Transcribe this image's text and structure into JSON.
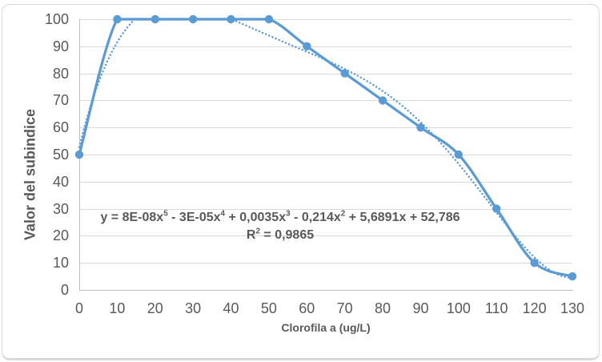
{
  "chart_data": {
    "type": "line",
    "title": "",
    "xlabel": "Clorofila a (ug/L)",
    "ylabel": "Valor del subindice",
    "x": [
      0,
      10,
      20,
      30,
      40,
      50,
      60,
      70,
      80,
      90,
      100,
      110,
      120,
      130
    ],
    "series": [
      {
        "name": "Valor del subindice",
        "values": [
          50,
          100,
          100,
          100,
          100,
          100,
          90,
          80,
          70,
          60,
          50,
          30,
          10,
          5
        ],
        "marker": "circle",
        "line": "smooth-solid"
      }
    ],
    "xlim": [
      0,
      130
    ],
    "ylim": [
      0,
      100
    ],
    "x_ticks": [
      0,
      10,
      20,
      30,
      40,
      50,
      60,
      70,
      80,
      90,
      100,
      110,
      120,
      130
    ],
    "y_ticks": [
      0,
      10,
      20,
      30,
      40,
      50,
      60,
      70,
      80,
      90,
      100
    ],
    "grid": "horizontal-major",
    "legend": "none",
    "colors": {
      "series": "#5B9BD5",
      "gridline": "#D9D9D9",
      "axis_line": "#BFBFBF",
      "tick_text": "#595959",
      "border": "#D9D9D9"
    },
    "trendline": {
      "kind": "polynomial",
      "degree": 5,
      "style": "dotted",
      "equation_text": "y = 8E-08x⁵ - 3E-05x⁴ + 0,0035x³ - 0,214x² + 5,6891x + 52,786",
      "r2_text": "R² = 0,9865",
      "equation_parts": [
        {
          "t": "y = 8E-08x"
        },
        {
          "s": "5"
        },
        {
          "t": " - 3E-05x"
        },
        {
          "s": "4"
        },
        {
          "t": " + 0,0035x"
        },
        {
          "s": "3"
        },
        {
          "t": " - 0,214x"
        },
        {
          "s": "2"
        },
        {
          "t": " + 5,6891x + 52,786"
        }
      ],
      "r2_parts": [
        {
          "t": "R"
        },
        {
          "s": "2"
        },
        {
          "t": " = 0,9865"
        }
      ]
    }
  }
}
